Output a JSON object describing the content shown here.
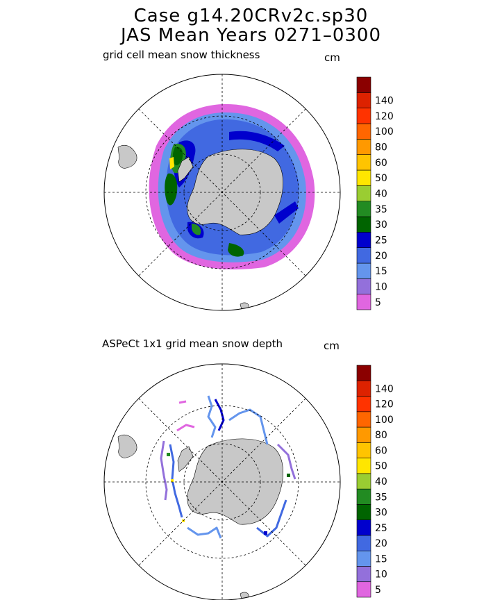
{
  "header": {
    "title_line1": "Case g14.20CRv2c.sp30",
    "title_line2": "JAS Mean    Years 0271–0300"
  },
  "colors": {
    "land": "#c8c8c8",
    "scale": [
      "#e066e0",
      "#9370db",
      "#6495ed",
      "#4169e1",
      "#0000cd",
      "#006400",
      "#228b22",
      "#9acd32",
      "#ffe600",
      "#ffc400",
      "#ff9900",
      "#ff6600",
      "#ff3300",
      "#dd2200",
      "#8b0000"
    ]
  },
  "colorbar_ticks": [
    "5",
    "10",
    "15",
    "20",
    "25",
    "30",
    "35",
    "40",
    "50",
    "60",
    "80",
    "100",
    "120",
    "140"
  ],
  "panels": [
    {
      "id": "model",
      "subtitle": "grid cell mean snow thickness",
      "unit": "cm"
    },
    {
      "id": "obs",
      "subtitle": "ASPeCt 1x1 grid mean snow depth",
      "unit": "cm"
    }
  ]
}
